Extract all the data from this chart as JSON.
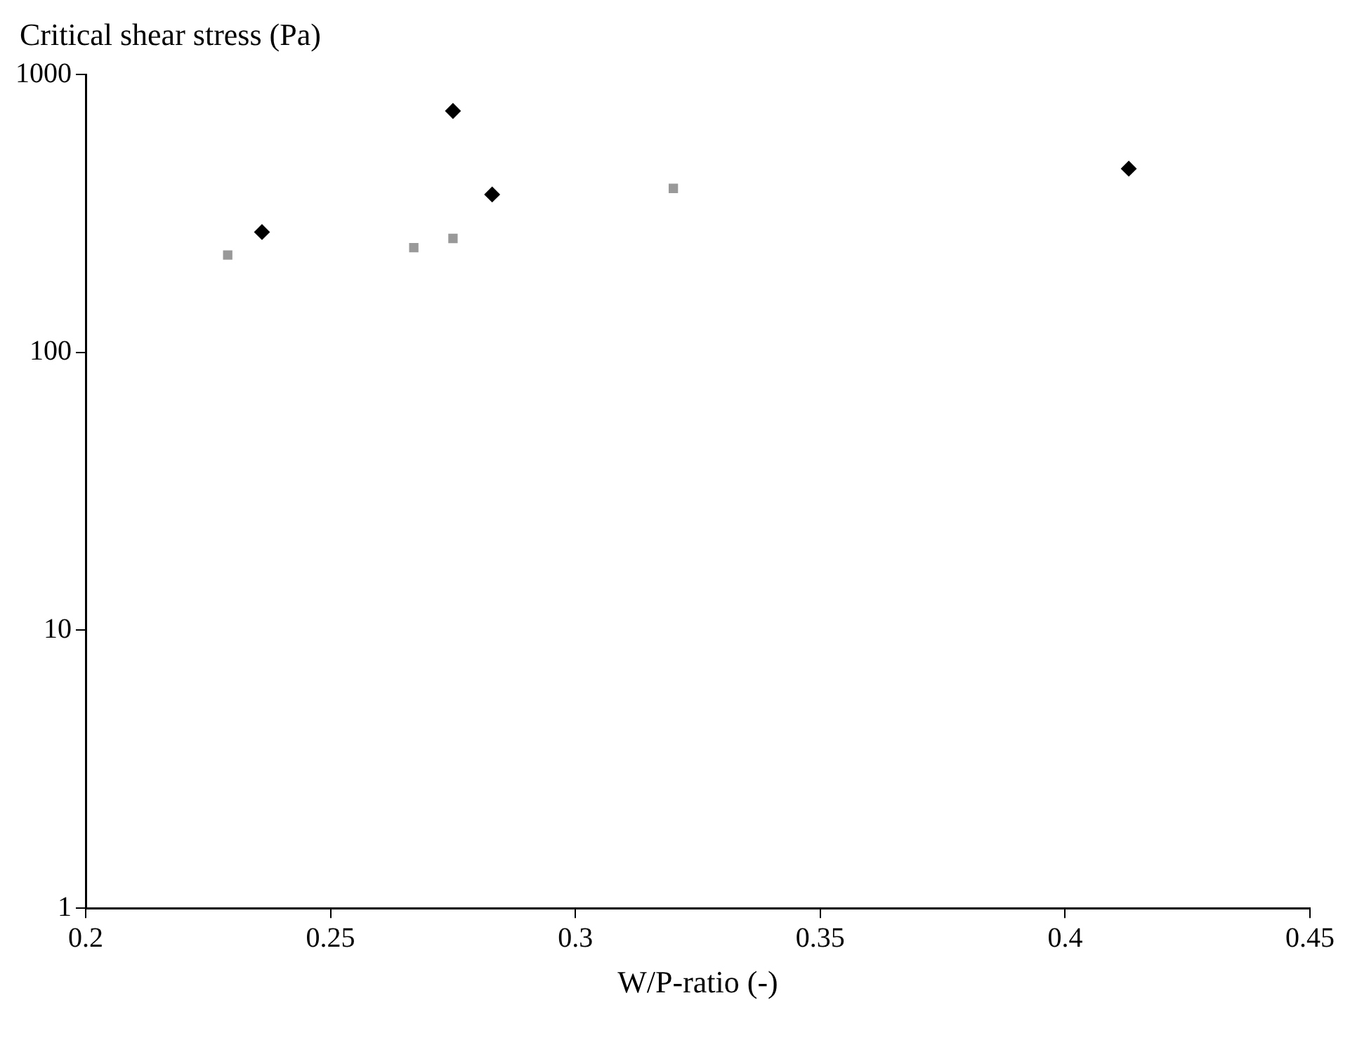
{
  "chart_data": {
    "type": "scatter",
    "xlabel": "W/P-ratio (-)",
    "ylabel": "Critical shear stress (Pa)",
    "log": "y",
    "grid": false,
    "legend": false,
    "xlim": [
      0.2,
      0.45
    ],
    "xticks": [
      0.2,
      0.25,
      0.3,
      0.35,
      0.4,
      0.45
    ],
    "ylim": [
      1,
      1000
    ],
    "yticks": [
      1,
      10,
      100,
      1000
    ],
    "series": [
      {
        "color": "#000000",
        "marker": "diamond",
        "x": [
          0.236,
          0.275,
          0.283,
          0.413
        ],
        "values": [
          271,
          739,
          370,
          458
        ]
      },
      {
        "color": "#999999",
        "marker": "square",
        "x": [
          0.229,
          0.267,
          0.275,
          0.32
        ],
        "values": [
          224,
          238,
          257,
          389
        ]
      }
    ]
  }
}
